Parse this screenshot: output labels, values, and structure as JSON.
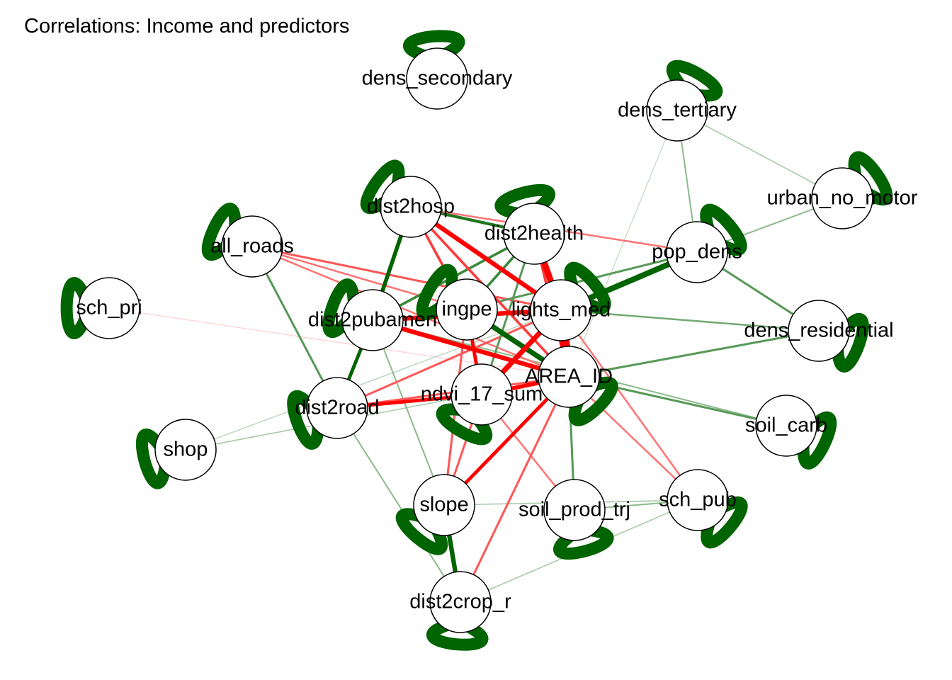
{
  "title": "Correlations: Income and predictors",
  "colors": {
    "positive": "#006400",
    "negative": "#ff0000",
    "background": "#ffffff"
  },
  "nodes": [
    {
      "id": "dens_secondary",
      "label": "dens_secondary"
    },
    {
      "id": "dens_tertiary",
      "label": "dens_tertiary"
    },
    {
      "id": "urban_no_motor",
      "label": "urban_no_motor"
    },
    {
      "id": "dist2hosp",
      "label": "dist2hosp"
    },
    {
      "id": "dist2health",
      "label": "dist2health"
    },
    {
      "id": "all_roads",
      "label": "all_roads"
    },
    {
      "id": "pop_dens",
      "label": "pop_dens"
    },
    {
      "id": "sch_pri",
      "label": "sch_pri"
    },
    {
      "id": "dist2pubamen",
      "label": "dist2pubamen"
    },
    {
      "id": "ingpe",
      "label": "ingpe"
    },
    {
      "id": "lights_med",
      "label": "lights_med"
    },
    {
      "id": "dens_residential",
      "label": "dens_residential"
    },
    {
      "id": "AREA_ID",
      "label": "AREA_ID"
    },
    {
      "id": "ndvi_17_sum",
      "label": "ndvi_17_sum"
    },
    {
      "id": "dist2road",
      "label": "dist2road"
    },
    {
      "id": "soil_carb",
      "label": "soil_carb"
    },
    {
      "id": "shop",
      "label": "shop"
    },
    {
      "id": "slope",
      "label": "slope"
    },
    {
      "id": "soil_prod_trj",
      "label": "soil_prod_trj"
    },
    {
      "id": "sch_pub",
      "label": "sch_pub"
    },
    {
      "id": "dist2crop_r",
      "label": "dist2crop_r"
    }
  ],
  "edges": [
    {
      "a": "lights_med",
      "b": "AREA_ID",
      "r": -0.95
    },
    {
      "a": "dist2health",
      "b": "lights_med",
      "r": -0.7
    },
    {
      "a": "ingpe",
      "b": "AREA_ID",
      "r": 0.6
    },
    {
      "a": "lights_med",
      "b": "pop_dens",
      "r": 0.65
    },
    {
      "a": "dist2hosp",
      "b": "lights_med",
      "r": -0.55
    },
    {
      "a": "dist2pubamen",
      "b": "AREA_ID",
      "r": -0.55
    },
    {
      "a": "dist2pubamen",
      "b": "lights_med",
      "r": -0.55
    },
    {
      "a": "ndvi_17_sum",
      "b": "AREA_ID",
      "r": -0.5
    },
    {
      "a": "dist2road",
      "b": "ndvi_17_sum",
      "r": -0.45
    },
    {
      "a": "slope",
      "b": "AREA_ID",
      "r": -0.45
    },
    {
      "a": "ndvi_17_sum",
      "b": "lights_med",
      "r": -0.6
    },
    {
      "a": "ingpe",
      "b": "ndvi_17_sum",
      "r": -0.45
    },
    {
      "a": "slope",
      "b": "dist2crop_r",
      "r": 0.55
    },
    {
      "a": "dist2hosp",
      "b": "dist2pubamen",
      "r": 0.5
    },
    {
      "a": "dist2pubamen",
      "b": "dist2road",
      "r": 0.45
    },
    {
      "a": "dist2hosp",
      "b": "dist2health",
      "r": 0.4
    },
    {
      "a": "ingpe",
      "b": "dist2health",
      "r": 0.35
    },
    {
      "a": "dist2pubamen",
      "b": "dist2health",
      "r": 0.35
    },
    {
      "a": "dist2hosp",
      "b": "ingpe",
      "r": -0.35
    },
    {
      "a": "dist2hosp",
      "b": "AREA_ID",
      "r": -0.35
    },
    {
      "a": "dist2health",
      "b": "AREA_ID",
      "r": -0.35
    },
    {
      "a": "all_roads",
      "b": "lights_med",
      "r": -0.3
    },
    {
      "a": "all_roads",
      "b": "AREA_ID",
      "r": -0.25
    },
    {
      "a": "all_roads",
      "b": "ingpe",
      "r": -0.25
    },
    {
      "a": "all_roads",
      "b": "dist2road",
      "r": 0.3
    },
    {
      "a": "pop_dens",
      "b": "dens_residential",
      "r": 0.3
    },
    {
      "a": "pop_dens",
      "b": "urban_no_motor",
      "r": 0.2
    },
    {
      "a": "dens_tertiary",
      "b": "pop_dens",
      "r": 0.2
    },
    {
      "a": "dens_tertiary",
      "b": "urban_no_motor",
      "r": 0.15
    },
    {
      "a": "AREA_ID",
      "b": "soil_carb",
      "r": 0.3
    },
    {
      "a": "AREA_ID",
      "b": "soil_prod_trj",
      "r": 0.3
    },
    {
      "a": "AREA_ID",
      "b": "sch_pub",
      "r": -0.25
    },
    {
      "a": "lights_med",
      "b": "sch_pub",
      "r": -0.25
    },
    {
      "a": "ndvi_17_sum",
      "b": "slope",
      "r": -0.3
    },
    {
      "a": "ndvi_17_sum",
      "b": "soil_prod_trj",
      "r": -0.25
    },
    {
      "a": "dist2road",
      "b": "dist2crop_r",
      "r": 0.2
    },
    {
      "a": "dist2crop_r",
      "b": "AREA_ID",
      "r": -0.3
    },
    {
      "a": "soil_prod_trj",
      "b": "sch_pub",
      "r": 0.2
    },
    {
      "a": "dist2crop_r",
      "b": "sch_pub",
      "r": 0.15
    },
    {
      "a": "slope",
      "b": "sch_pub",
      "r": 0.15
    },
    {
      "a": "shop",
      "b": "AREA_ID",
      "r": 0.15
    },
    {
      "a": "shop",
      "b": "lights_med",
      "r": 0.12
    },
    {
      "a": "sch_pri",
      "b": "AREA_ID",
      "r": -0.08
    },
    {
      "a": "lights_med",
      "b": "dens_residential",
      "r": 0.25
    },
    {
      "a": "ingpe",
      "b": "pop_dens",
      "r": 0.3
    },
    {
      "a": "dist2road",
      "b": "lights_med",
      "r": -0.3
    },
    {
      "a": "dist2road",
      "b": "AREA_ID",
      "r": -0.3
    },
    {
      "a": "dist2pubamen",
      "b": "soil_carb",
      "r": 0.2
    },
    {
      "a": "AREA_ID",
      "b": "dens_residential",
      "r": 0.3
    },
    {
      "a": "dist2hosp",
      "b": "pop_dens",
      "r": -0.25
    },
    {
      "a": "ingpe",
      "b": "slope",
      "r": -0.3
    },
    {
      "a": "dist2pubamen",
      "b": "slope",
      "r": 0.2
    },
    {
      "a": "dist2health",
      "b": "ndvi_17_sum",
      "r": 0.3
    },
    {
      "a": "dens_tertiary",
      "b": "AREA_ID",
      "r": 0.1
    }
  ]
}
